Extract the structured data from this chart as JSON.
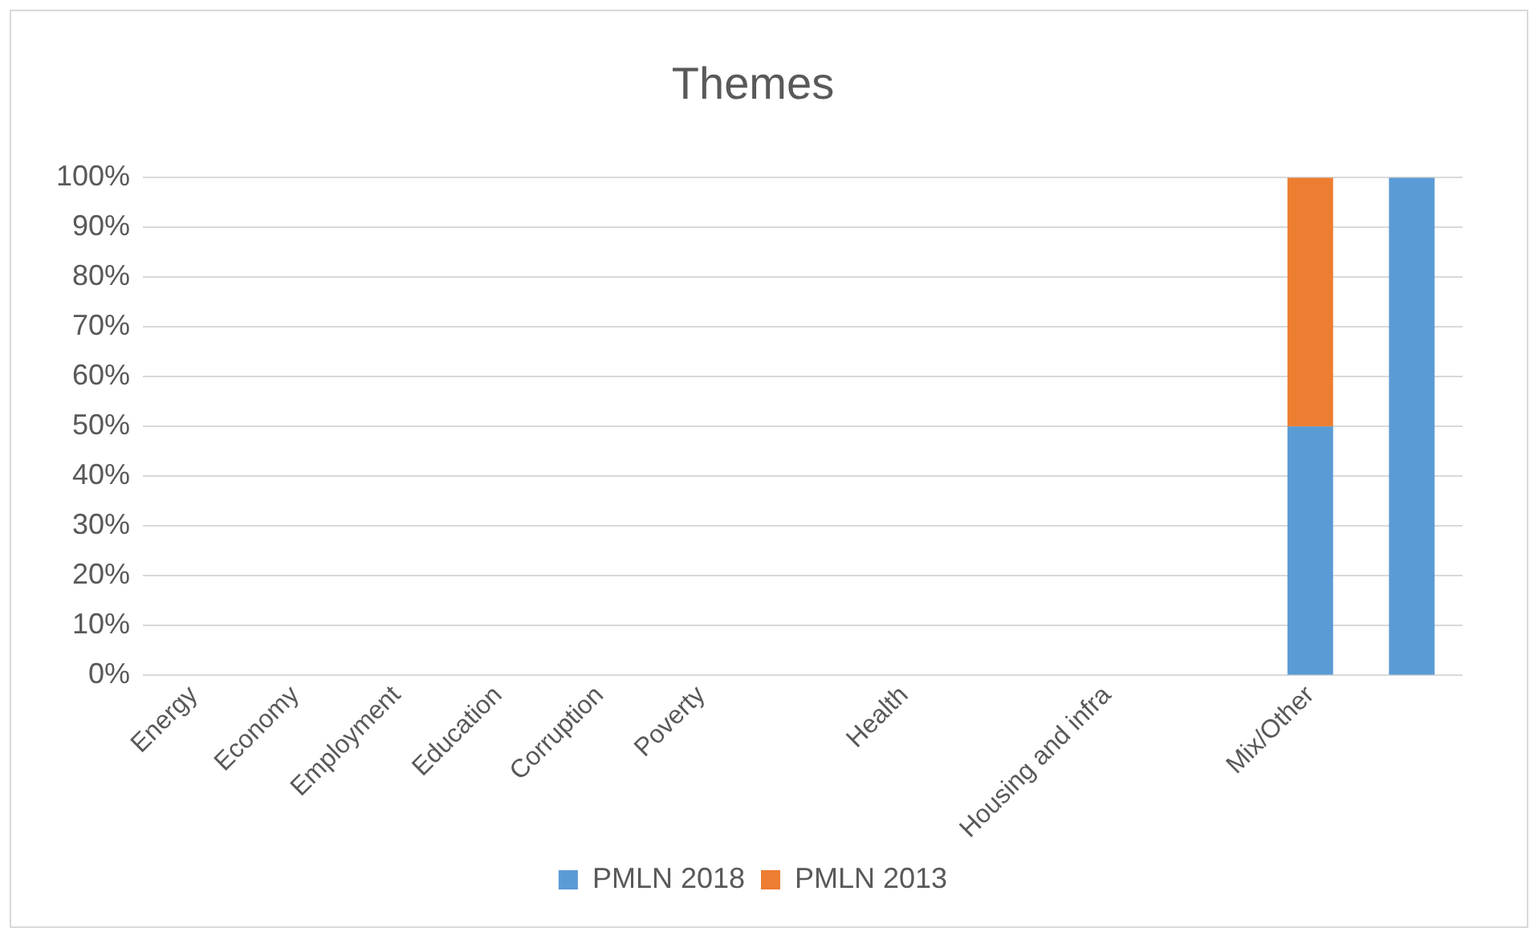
{
  "chart_data": {
    "type": "bar",
    "title": "Themes",
    "stacked": true,
    "categories": [
      "Energy",
      "Economy",
      "Employment",
      "Education",
      "Corruption",
      "Poverty",
      null,
      "Health",
      null,
      "Housing and infra",
      null,
      "Mix/Other",
      null
    ],
    "series": [
      {
        "name": "PMLN 2018",
        "color": "#5b9bd5",
        "values": [
          0,
          0,
          0,
          0,
          0,
          0,
          0,
          0,
          0,
          0,
          0,
          50,
          100
        ]
      },
      {
        "name": "PMLN 2013",
        "color": "#ed7d31",
        "values": [
          0,
          0,
          0,
          0,
          0,
          0,
          0,
          0,
          0,
          0,
          0,
          50,
          0
        ]
      }
    ],
    "ylim": [
      0,
      100
    ],
    "yticks": [
      {
        "value": 0,
        "label": "0%"
      },
      {
        "value": 10,
        "label": "10%"
      },
      {
        "value": 20,
        "label": "20%"
      },
      {
        "value": 30,
        "label": "30%"
      },
      {
        "value": 40,
        "label": "40%"
      },
      {
        "value": 50,
        "label": "50%"
      },
      {
        "value": 60,
        "label": "60%"
      },
      {
        "value": 70,
        "label": "70%"
      },
      {
        "value": 80,
        "label": "80%"
      },
      {
        "value": 90,
        "label": "90%"
      },
      {
        "value": 100,
        "label": "100%"
      }
    ],
    "grid": "y",
    "legend": "bottom"
  }
}
